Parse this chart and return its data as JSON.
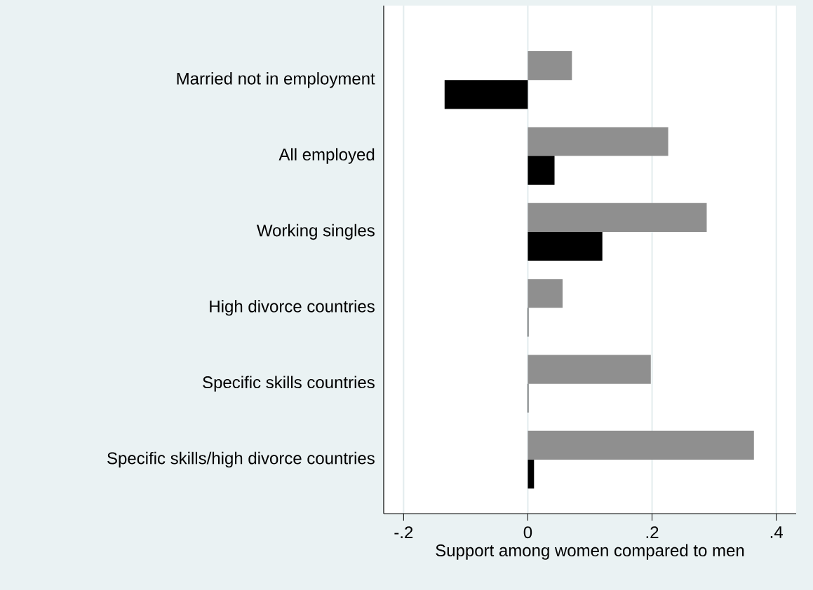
{
  "chart_data": {
    "type": "bar",
    "orientation": "horizontal",
    "categories": [
      "Married not in employment",
      "All employed",
      "Working singles",
      "High divorce countries",
      "Specific skills countries",
      "Specific skills/high divorce countries"
    ],
    "series": [
      {
        "color": "#8f8f8f",
        "values": [
          0.071,
          0.226,
          0.288,
          0.056,
          0.198,
          0.364
        ]
      },
      {
        "color": "#000000",
        "values": [
          -0.134,
          0.043,
          0.12,
          0.001,
          0.001,
          0.01
        ]
      }
    ],
    "xlabel": "Support among women compared to men",
    "xlim": [
      -0.232,
      0.432
    ],
    "xticks": [
      {
        "value": -0.2,
        "label": "-.2"
      },
      0,
      {
        "value": 0.2,
        "label": ".2"
      },
      {
        "value": 0.4,
        "label": ".4"
      }
    ],
    "grid": "x"
  }
}
